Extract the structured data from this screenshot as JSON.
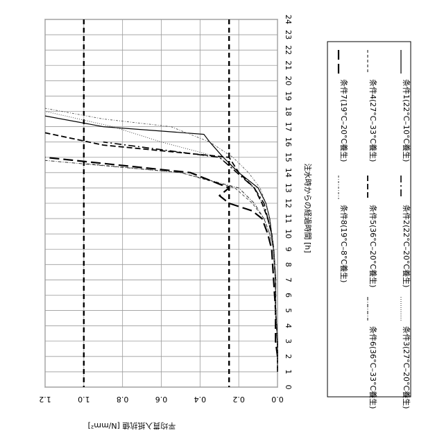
{
  "chart_data": {
    "type": "line",
    "title": "",
    "xlabel": "注水時からの経過時間 [h]",
    "ylabel": "平均貫入抵抗値 [N/mm²]",
    "xlim": [
      0,
      24
    ],
    "ylim": [
      0,
      1.2
    ],
    "x_ticks": [
      "0",
      "1",
      "2",
      "3",
      "4",
      "5",
      "6",
      "7",
      "8",
      "9",
      "10",
      "11",
      "12",
      "13",
      "14",
      "15",
      "16",
      "17",
      "18",
      "19",
      "20",
      "21",
      "22",
      "23",
      "24"
    ],
    "y_ticks": [
      "0.0",
      "0.2",
      "0.4",
      "0.6",
      "0.8",
      "1.0",
      "1.2"
    ],
    "grid": true,
    "reference_lines": [
      1.0,
      0.25
    ],
    "series": [
      {
        "name": "条件1(22°C–10°C養生)",
        "style": "solid",
        "x": [
          1,
          3,
          5,
          7,
          9,
          10,
          11,
          12,
          13,
          14,
          15,
          16,
          16.5,
          17,
          17.7
        ],
        "y": [
          0.0,
          0.0,
          0.01,
          0.01,
          0.02,
          0.03,
          0.04,
          0.06,
          0.1,
          0.2,
          0.28,
          0.35,
          0.38,
          0.9,
          1.2
        ]
      },
      {
        "name": "条件2(22°C–20°C養生)",
        "style": "dashdot",
        "x": [
          1,
          3,
          5,
          7,
          9,
          10,
          11,
          12,
          13,
          14,
          15,
          16
        ],
        "y": [
          0.0,
          0.0,
          0.01,
          0.01,
          0.02,
          0.03,
          0.05,
          0.07,
          0.12,
          0.21,
          0.3,
          0.9
        ]
      },
      {
        "name": "条件3(27°C–20°C養生)",
        "style": "dotted",
        "x": [
          1,
          3,
          5,
          7,
          9,
          10,
          11,
          12,
          13,
          14,
          15,
          16,
          17,
          18
        ],
        "y": [
          0.0,
          0.0,
          0.01,
          0.01,
          0.02,
          0.03,
          0.05,
          0.08,
          0.12,
          0.2,
          0.3,
          0.6,
          0.85,
          1.2
        ]
      },
      {
        "name": "条件4(27°C–33°C養生)",
        "style": "thindash",
        "x": [
          1,
          3,
          5,
          7,
          9,
          10,
          11,
          12,
          13,
          14,
          14.6
        ],
        "y": [
          0.0,
          0.0,
          0.01,
          0.01,
          0.02,
          0.04,
          0.07,
          0.13,
          0.22,
          0.5,
          1.0
        ]
      },
      {
        "name": "条件5(36°C–20°C養生)",
        "style": "dash",
        "x": [
          1,
          3,
          5,
          7,
          9,
          10,
          11,
          12,
          13,
          14,
          15,
          15.8,
          16.6
        ],
        "y": [
          0.0,
          0.0,
          0.01,
          0.01,
          0.02,
          0.03,
          0.05,
          0.08,
          0.12,
          0.2,
          0.25,
          0.9,
          1.2
        ]
      },
      {
        "name": "条件6(36°C–33°C養生)",
        "style": "dashdot2",
        "x": [
          1,
          3,
          5,
          7,
          9,
          10,
          11,
          12,
          13,
          14,
          14.8
        ],
        "y": [
          0.0,
          0.0,
          0.01,
          0.01,
          0.02,
          0.04,
          0.07,
          0.12,
          0.2,
          0.5,
          1.2
        ]
      },
      {
        "name": "条件7(19°C–20°C養生)",
        "style": "longdash",
        "x": [
          2,
          3,
          4,
          5,
          7,
          9,
          10,
          11,
          11.5,
          12,
          12.5,
          13,
          14,
          15
        ],
        "y": [
          0.0,
          0.01,
          0.01,
          0.01,
          0.02,
          0.03,
          0.05,
          0.08,
          0.13,
          0.25,
          0.3,
          0.25,
          0.45,
          1.2
        ]
      },
      {
        "name": "条件8(19°C–8°C養生)",
        "style": "dotdash",
        "x": [
          1,
          3,
          5,
          7,
          9,
          10,
          11,
          12,
          13,
          14,
          15,
          16,
          17,
          17.5,
          18.2
        ],
        "y": [
          0.0,
          0.0,
          0.01,
          0.01,
          0.02,
          0.03,
          0.04,
          0.06,
          0.09,
          0.15,
          0.23,
          0.35,
          0.55,
          0.9,
          1.2
        ]
      }
    ]
  },
  "legend": {
    "items": [
      {
        "label": "条件1(22°C–10°C養生)"
      },
      {
        "label": "条件2(22°C–20°C養生)"
      },
      {
        "label": "条件3(27°C–20°C養生)"
      },
      {
        "label": "条件4(27°C–33°C養生)"
      },
      {
        "label": "条件5(36°C–20°C養生)"
      },
      {
        "label": "条件6(36°C–33°C養生)"
      },
      {
        "label": "条件7(19°C–20°C養生)"
      },
      {
        "label": "条件8(19°C–8°C養生)"
      }
    ]
  }
}
